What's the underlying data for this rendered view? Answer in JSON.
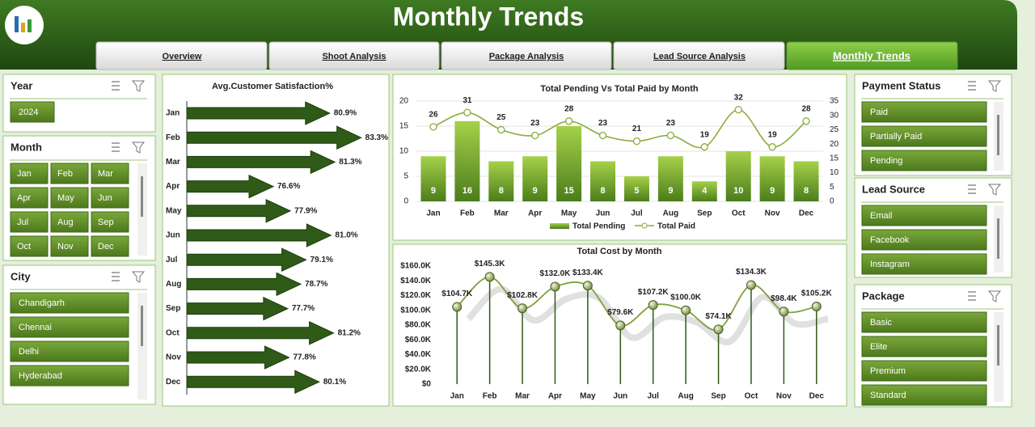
{
  "header": {
    "title": "Monthly Trends"
  },
  "tabs": [
    "Overview",
    "Shoot Analysis",
    "Package Analysis",
    "Lead Source Analysis",
    "Monthly Trends"
  ],
  "slicers": [
    {
      "title": "Year",
      "items": [
        "2024"
      ]
    },
    {
      "title": "Month",
      "items": [
        "Jan",
        "Feb",
        "Mar",
        "Apr",
        "May",
        "Jun",
        "Jul",
        "Aug",
        "Sep",
        "Oct",
        "Nov",
        "Dec"
      ]
    },
    {
      "title": "City",
      "items": [
        "Chandigarh",
        "Chennai",
        "Delhi",
        "Hyderabad"
      ]
    },
    {
      "title": "Payment Status",
      "items": [
        "Paid",
        "Partially Paid",
        "Pending"
      ]
    },
    {
      "title": "Lead Source",
      "items": [
        "Email",
        "Facebook",
        "Instagram"
      ]
    },
    {
      "title": "Package",
      "items": [
        "Basic",
        "Elite",
        "Premium",
        "Standard"
      ]
    }
  ],
  "chart_data": [
    {
      "type": "arrow-bar",
      "title": "Avg.Customer Satisfaction%",
      "categories": [
        "Jan",
        "Feb",
        "Mar",
        "Apr",
        "May",
        "Jun",
        "Jul",
        "Aug",
        "Sep",
        "Oct",
        "Nov",
        "Dec"
      ],
      "values": [
        80.9,
        83.3,
        81.3,
        76.6,
        77.9,
        81.0,
        79.1,
        78.7,
        77.7,
        81.2,
        77.8,
        80.1
      ],
      "value_labels": [
        "80.9%",
        "83.3%",
        "81.3%",
        "76.6%",
        "77.9%",
        "81.0%",
        "79.1%",
        "78.7%",
        "77.7%",
        "81.2%",
        "77.8%",
        "80.1%"
      ],
      "xlim": [
        70,
        84
      ],
      "color": "#2f5a17"
    },
    {
      "type": "combo",
      "title": "Total Pending Vs Total Paid by Month",
      "categories": [
        "Jan",
        "Feb",
        "Mar",
        "Apr",
        "May",
        "Jun",
        "Jul",
        "Aug",
        "Sep",
        "Oct",
        "Nov",
        "Dec"
      ],
      "series": [
        {
          "name": "Total Pending",
          "type": "bar",
          "color": "#6a9e2a",
          "values": [
            9,
            16,
            8,
            9,
            15,
            8,
            5,
            9,
            4,
            10,
            9,
            8
          ]
        },
        {
          "name": "Total Paid",
          "type": "line",
          "axis": "y2",
          "color": "#8aac3c",
          "values": [
            26,
            31,
            25,
            23,
            28,
            23,
            21,
            23,
            19,
            32,
            19,
            28
          ]
        }
      ],
      "ylim": [
        0,
        20
      ],
      "yticks": [
        0,
        5,
        10,
        15,
        20
      ],
      "y2lim": [
        0,
        35
      ],
      "y2ticks": [
        0,
        5,
        10,
        15,
        20,
        25,
        30,
        35
      ],
      "grid": true
    },
    {
      "type": "line",
      "title": "Total Cost by Month",
      "categories": [
        "Jan",
        "Feb",
        "Mar",
        "Apr",
        "May",
        "Jun",
        "Jul",
        "Aug",
        "Sep",
        "Oct",
        "Nov",
        "Dec"
      ],
      "values": [
        104700,
        145300,
        102800,
        132000,
        133400,
        79600,
        107200,
        100000,
        74100,
        134300,
        98400,
        105200
      ],
      "value_labels": [
        "$104.7K",
        "$145.3K",
        "$102.8K",
        "$132.0K",
        "$133.4K",
        "$79.6K",
        "$107.2K",
        "$100.0K",
        "$74.1K",
        "$134.3K",
        "$98.4K",
        "$105.2K"
      ],
      "ylim": [
        0,
        160000
      ],
      "yticks": [
        {
          "value": 0,
          "label": "$0"
        },
        {
          "value": 20000,
          "label": "$20.0K"
        },
        {
          "value": 40000,
          "label": "$40.0K"
        },
        {
          "value": 60000,
          "label": "$60.0K"
        },
        {
          "value": 80000,
          "label": "$80.0K"
        },
        {
          "value": 100000,
          "label": "$100.0K"
        },
        {
          "value": 120000,
          "label": "$120.0K"
        },
        {
          "value": 140000,
          "label": "$140.0K"
        },
        {
          "value": 160000,
          "label": "$160.0K"
        }
      ],
      "color": "#7ea33a",
      "grid": false
    }
  ]
}
